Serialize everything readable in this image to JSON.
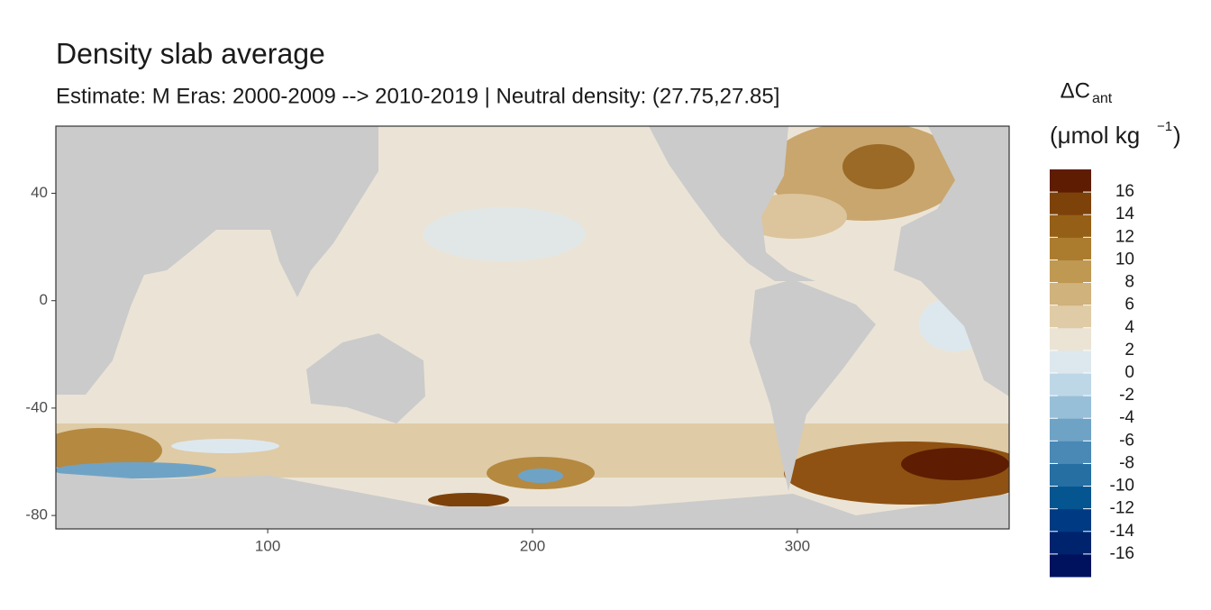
{
  "chart_data": {
    "type": "raster-map",
    "title": "Density slab average",
    "subtitle": "Estimate: M Eras: 2000-2009 --> 2010-2019 | Neutral density: (27.75,27.85]",
    "xlim": [
      20,
      380
    ],
    "xticks": [
      100,
      200,
      300
    ],
    "ylim": [
      -85,
      65
    ],
    "yticks": [
      40,
      0,
      -40,
      -80
    ],
    "legend": {
      "title": "ΔC",
      "title_sub": "ant",
      "unit": "(μmol kg",
      "unit_sup": "−1",
      "unit_end": ")",
      "lim": [
        -18,
        18
      ],
      "ticks": [
        -16,
        -14,
        -12,
        -10,
        -8,
        -6,
        -4,
        -2,
        0,
        2,
        4,
        6,
        8,
        10,
        12,
        14,
        16
      ],
      "colors": [
        "#00125e",
        "#00236e",
        "#003a82",
        "#055591",
        "#256f a3",
        "#4a88b5",
        "#6fa3c6",
        "#98bfd8",
        "#bed7e7",
        "#dde8ee",
        "#ebe3d4",
        "#dfcba6",
        "#cfb27c",
        "#bf9852",
        "#ab7b2e",
        "#955f17",
        "#7d420a",
        "#5e1c03"
      ]
    }
  }
}
